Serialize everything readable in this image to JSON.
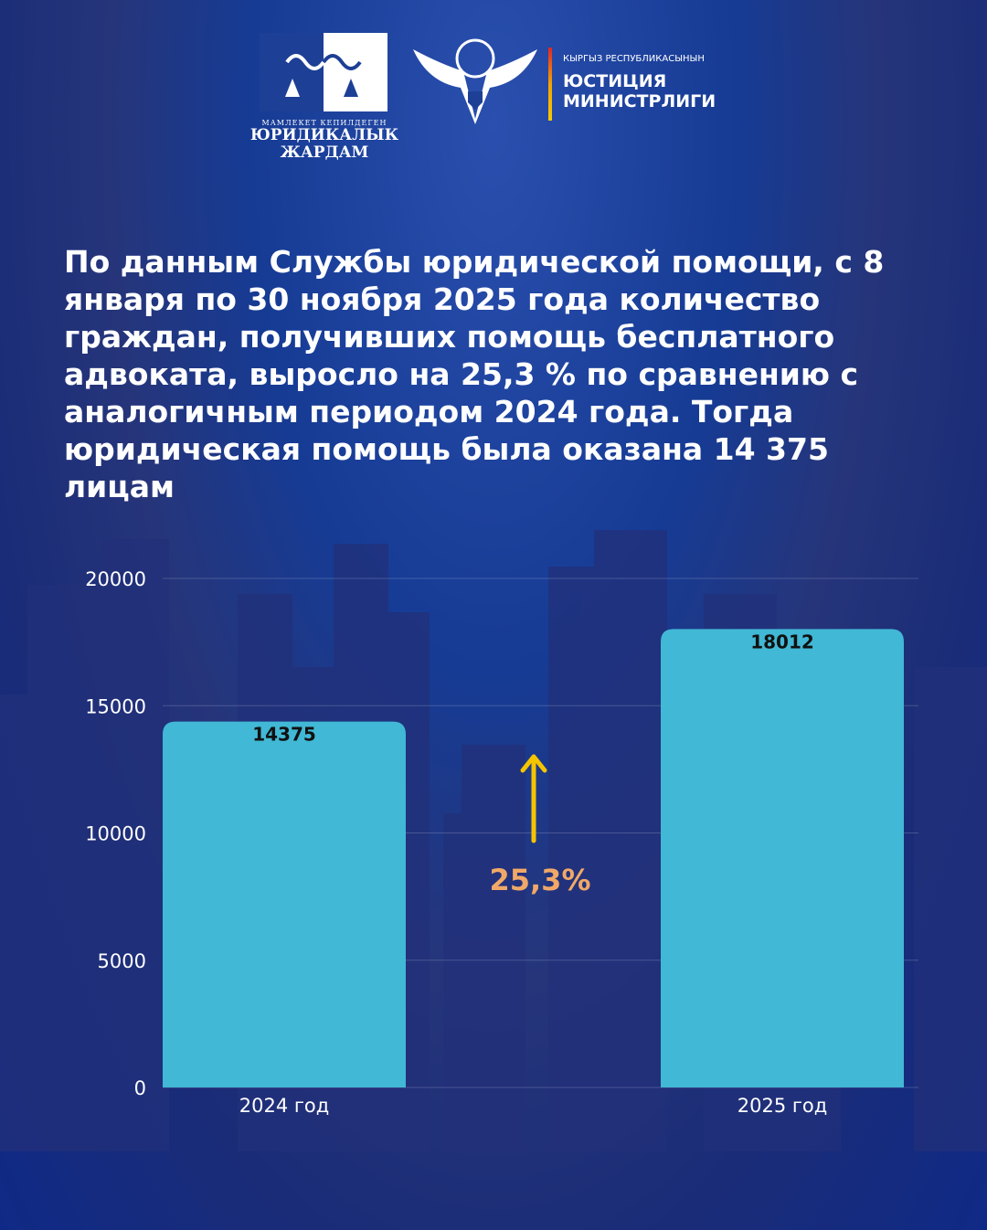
{
  "logos": {
    "legal_aid": {
      "small": "МАМЛЕКЕТ КЕПИЛДЕГЕН",
      "line1": "ЮРИДИКАЛЫК",
      "line2": "ЖАРДАМ"
    },
    "ministry": {
      "small": "КЫРГЫЗ РЕСПУБЛИКАСЫНЫН",
      "line1": "ЮСТИЦИЯ",
      "line2": "МИНИСТРЛИГИ"
    }
  },
  "headline": "По данным Службы юридической помощи, с 8 января по 30 ноября 2025 года количество граждан, получивших помощь бесплатного адвоката, выросло на 25,3 % по сравнению с аналогичным периодом 2024 года. Тогда юридическая помощь была оказана 14 375 лицам",
  "chart_data": {
    "type": "bar",
    "categories": [
      "2024 год",
      "2025 год"
    ],
    "values": [
      14375,
      18012
    ],
    "data_labels": [
      "14375",
      "18012"
    ],
    "ylim": [
      0,
      20000
    ],
    "yticks": [
      "0",
      "5000",
      "10000",
      "15000",
      "20000"
    ],
    "grid": true,
    "annotation": "25,3%",
    "bar_color": "#41b8d5",
    "arrow_color": "#f5c400",
    "annotation_color": "#f0a868"
  }
}
